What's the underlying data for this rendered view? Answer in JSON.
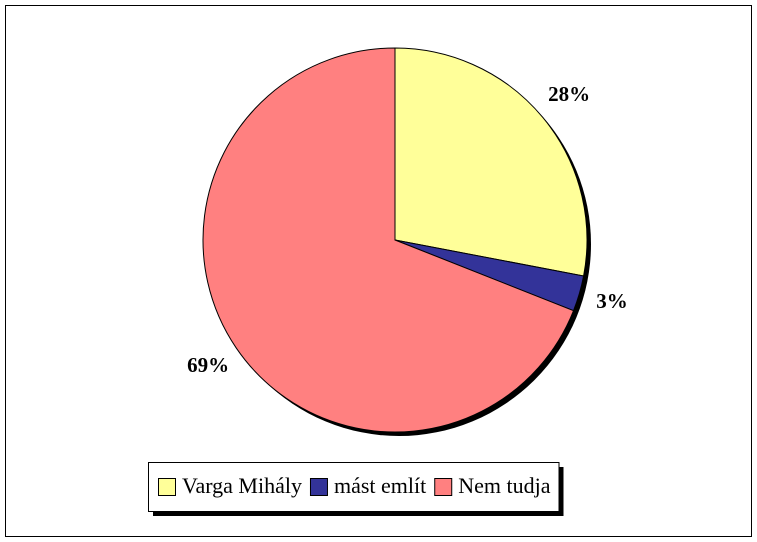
{
  "chart_data": {
    "type": "pie",
    "categories": [
      "Varga Mihály",
      "mást említ",
      "Nem tudja"
    ],
    "values": [
      28,
      3,
      69
    ],
    "value_labels": [
      "28%",
      "3%",
      "69%"
    ],
    "colors": [
      "#ffff99",
      "#333399",
      "#ff8080"
    ],
    "legend": "bottom"
  }
}
